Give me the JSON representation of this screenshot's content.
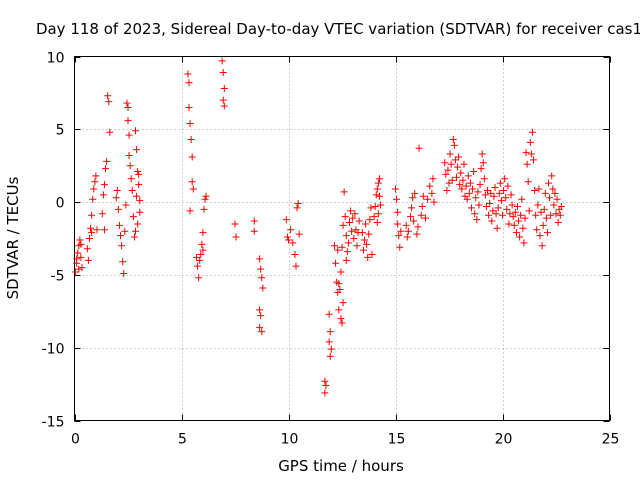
{
  "chart_data": {
    "type": "scatter",
    "title": "Day 118 of 2023, Sidereal Day-to-day VTEC variation (SDTVAR) for receiver cas1",
    "xlabel": "GPS time / hours",
    "ylabel": "SDTVAR / TECUs",
    "xlim": [
      0,
      25
    ],
    "ylim": [
      -15,
      10
    ],
    "xticks": [
      0,
      5,
      10,
      15,
      20,
      25
    ],
    "yticks": [
      -15,
      -10,
      -5,
      0,
      5,
      10
    ],
    "xtick_labels": [
      "0",
      "5",
      "10",
      "15",
      "20",
      "25"
    ],
    "ytick_labels": [
      "-15",
      "-10",
      "-5",
      "0",
      "5",
      "10"
    ],
    "grid": true,
    "marker": "+",
    "color": "#ff0000",
    "series": [
      {
        "name": "SDTVAR",
        "points": [
          [
            0.05,
            -4.8
          ],
          [
            0.1,
            -4.2
          ],
          [
            0.15,
            -3.5
          ],
          [
            0.2,
            -3.0
          ],
          [
            0.25,
            -2.6
          ],
          [
            0.3,
            -3.8
          ],
          [
            0.35,
            -4.5
          ],
          [
            0.1,
            -3.9
          ],
          [
            0.2,
            -4.6
          ],
          [
            0.3,
            -2.9
          ],
          [
            0.6,
            -3.2
          ],
          [
            0.65,
            -4.0
          ],
          [
            0.7,
            -2.5
          ],
          [
            0.75,
            -1.8
          ],
          [
            0.8,
            -0.9
          ],
          [
            0.85,
            0.2
          ],
          [
            0.9,
            0.9
          ],
          [
            0.95,
            1.4
          ],
          [
            1.0,
            1.8
          ],
          [
            1.05,
            -1.9
          ],
          [
            0.8,
            -2.1
          ],
          [
            1.35,
            0.5
          ],
          [
            1.4,
            1.2
          ],
          [
            1.45,
            2.3
          ],
          [
            1.5,
            2.8
          ],
          [
            1.55,
            7.3
          ],
          [
            1.6,
            6.9
          ],
          [
            1.65,
            4.8
          ],
          [
            1.3,
            -0.8
          ],
          [
            1.4,
            -1.9
          ],
          [
            1.95,
            0.3
          ],
          [
            2.0,
            0.8
          ],
          [
            2.05,
            -0.5
          ],
          [
            2.1,
            -1.6
          ],
          [
            2.15,
            -2.3
          ],
          [
            2.2,
            -3.0
          ],
          [
            2.25,
            -4.1
          ],
          [
            2.3,
            -4.9
          ],
          [
            2.35,
            -2.0
          ],
          [
            2.4,
            -0.2
          ],
          [
            2.45,
            6.8
          ],
          [
            2.5,
            6.5
          ],
          [
            2.5,
            5.6
          ],
          [
            2.55,
            4.6
          ],
          [
            2.55,
            3.2
          ],
          [
            2.6,
            2.5
          ],
          [
            2.65,
            1.6
          ],
          [
            2.7,
            0.8
          ],
          [
            2.75,
            -1.0
          ],
          [
            2.8,
            -2.4
          ],
          [
            2.85,
            4.9
          ],
          [
            2.9,
            3.6
          ],
          [
            2.95,
            2.1
          ],
          [
            3.0,
            1.2
          ],
          [
            3.05,
            0.1
          ],
          [
            3.05,
            -0.7
          ],
          [
            2.95,
            -1.5
          ],
          [
            2.85,
            -2.0
          ],
          [
            2.9,
            0.4
          ],
          [
            3.0,
            1.9
          ],
          [
            5.3,
            8.8
          ],
          [
            5.35,
            8.2
          ],
          [
            5.35,
            6.5
          ],
          [
            5.4,
            5.4
          ],
          [
            5.45,
            4.3
          ],
          [
            5.5,
            3.1
          ],
          [
            5.5,
            1.4
          ],
          [
            5.55,
            0.9
          ],
          [
            5.4,
            -0.6
          ],
          [
            5.7,
            -3.8
          ],
          [
            5.75,
            -4.4
          ],
          [
            5.8,
            -5.2
          ],
          [
            5.85,
            -4.0
          ],
          [
            5.9,
            -3.6
          ],
          [
            5.95,
            -2.9
          ],
          [
            6.0,
            -2.1
          ],
          [
            6.05,
            -0.5
          ],
          [
            6.1,
            0.2
          ],
          [
            6.15,
            0.4
          ],
          [
            6.0,
            -3.3
          ],
          [
            6.9,
            9.7
          ],
          [
            6.95,
            8.9
          ],
          [
            7.0,
            7.8
          ],
          [
            6.95,
            7.0
          ],
          [
            7.0,
            6.6
          ],
          [
            7.5,
            -1.5
          ],
          [
            7.55,
            -2.4
          ],
          [
            8.4,
            -1.3
          ],
          [
            8.4,
            -2.0
          ],
          [
            8.65,
            -3.9
          ],
          [
            8.7,
            -4.6
          ],
          [
            8.75,
            -5.2
          ],
          [
            8.8,
            -5.9
          ],
          [
            8.65,
            -7.4
          ],
          [
            8.7,
            -7.8
          ],
          [
            8.65,
            -8.6
          ],
          [
            8.75,
            -8.9
          ],
          [
            9.9,
            -1.2
          ],
          [
            9.95,
            -2.4
          ],
          [
            10.0,
            -2.6
          ],
          [
            10.1,
            -1.9
          ],
          [
            10.2,
            -2.8
          ],
          [
            10.3,
            -3.6
          ],
          [
            10.35,
            -4.4
          ],
          [
            10.4,
            -0.4
          ],
          [
            10.45,
            -0.1
          ],
          [
            10.5,
            -2.2
          ],
          [
            11.7,
            -12.3
          ],
          [
            11.75,
            -12.6
          ],
          [
            11.7,
            -13.1
          ],
          [
            11.9,
            -7.7
          ],
          [
            11.95,
            -8.9
          ],
          [
            11.9,
            -9.6
          ],
          [
            11.95,
            -10.6
          ],
          [
            12.0,
            -10.1
          ],
          [
            12.15,
            -3.0
          ],
          [
            12.2,
            -4.2
          ],
          [
            12.25,
            -5.5
          ],
          [
            12.3,
            -6.2
          ],
          [
            12.35,
            -7.4
          ],
          [
            12.4,
            -6.0
          ],
          [
            12.45,
            -4.8
          ],
          [
            12.5,
            -3.1
          ],
          [
            12.55,
            -1.6
          ],
          [
            12.6,
            0.7
          ],
          [
            12.65,
            -1.0
          ],
          [
            12.7,
            -2.3
          ],
          [
            12.75,
            -3.4
          ],
          [
            12.8,
            -2.8
          ],
          [
            12.85,
            -1.4
          ],
          [
            12.9,
            -0.6
          ],
          [
            12.95,
            -2.0
          ],
          [
            13.0,
            -1.1
          ],
          [
            13.05,
            -2.5
          ],
          [
            13.1,
            -0.8
          ],
          [
            13.15,
            -1.9
          ],
          [
            13.2,
            -3.0
          ],
          [
            13.25,
            -2.1
          ],
          [
            13.3,
            -1.3
          ],
          [
            12.45,
            -8.0
          ],
          [
            12.5,
            -8.3
          ],
          [
            12.35,
            -5.6
          ],
          [
            12.55,
            -6.9
          ],
          [
            12.7,
            -4.0
          ],
          [
            12.3,
            -3.3
          ],
          [
            13.45,
            -2.1
          ],
          [
            13.5,
            -3.3
          ],
          [
            13.55,
            -2.6
          ],
          [
            13.6,
            -1.5
          ],
          [
            13.65,
            -2.9
          ],
          [
            13.7,
            -3.8
          ],
          [
            13.75,
            -2.2
          ],
          [
            13.8,
            -1.2
          ],
          [
            13.85,
            -0.4
          ],
          [
            13.9,
            -3.6
          ],
          [
            14.0,
            -1.0
          ],
          [
            14.05,
            -0.3
          ],
          [
            14.1,
            0.5
          ],
          [
            14.15,
            0.9
          ],
          [
            14.2,
            1.3
          ],
          [
            14.25,
            0.4
          ],
          [
            14.3,
            -0.2
          ],
          [
            14.15,
            -1.4
          ],
          [
            14.2,
            -0.8
          ],
          [
            14.25,
            1.6
          ],
          [
            15.0,
            0.9
          ],
          [
            15.05,
            0.2
          ],
          [
            15.1,
            -1.5
          ],
          [
            15.15,
            -2.3
          ],
          [
            15.2,
            -3.1
          ],
          [
            15.25,
            -2.0
          ],
          [
            15.1,
            -0.7
          ],
          [
            15.5,
            -1.6
          ],
          [
            15.55,
            -2.4
          ],
          [
            15.6,
            -2.0
          ],
          [
            15.7,
            -1.0
          ],
          [
            15.75,
            -0.4
          ],
          [
            15.8,
            0.3
          ],
          [
            15.85,
            -1.3
          ],
          [
            15.9,
            0.6
          ],
          [
            16.0,
            -2.2
          ],
          [
            16.05,
            -1.7
          ],
          [
            16.1,
            3.7
          ],
          [
            16.2,
            -0.9
          ],
          [
            16.25,
            -0.3
          ],
          [
            16.3,
            0.4
          ],
          [
            16.4,
            -1.1
          ],
          [
            16.5,
            0.2
          ],
          [
            16.6,
            1.1
          ],
          [
            16.7,
            0.6
          ],
          [
            16.75,
            1.6
          ],
          [
            16.8,
            0.0
          ],
          [
            17.3,
            2.7
          ],
          [
            17.35,
            1.9
          ],
          [
            17.4,
            0.8
          ],
          [
            17.45,
            2.2
          ],
          [
            17.5,
            1.3
          ],
          [
            17.55,
            3.3
          ],
          [
            17.6,
            2.6
          ],
          [
            17.65,
            1.5
          ],
          [
            17.7,
            4.3
          ],
          [
            17.75,
            3.9
          ],
          [
            17.8,
            2.9
          ],
          [
            17.85,
            1.7
          ],
          [
            17.9,
            2.4
          ],
          [
            17.95,
            3.1
          ],
          [
            18.0,
            1.2
          ],
          [
            18.05,
            2.0
          ],
          [
            18.1,
            0.9
          ],
          [
            18.15,
            1.5
          ],
          [
            18.2,
            2.6
          ],
          [
            18.25,
            0.4
          ],
          [
            18.3,
            1.1
          ],
          [
            18.35,
            0.2
          ],
          [
            18.4,
            1.8
          ],
          [
            18.45,
            0.6
          ],
          [
            18.5,
            1.3
          ],
          [
            18.55,
            -0.4
          ],
          [
            18.6,
            0.9
          ],
          [
            18.65,
            2.1
          ],
          [
            18.7,
            -0.8
          ],
          [
            18.75,
            0.3
          ],
          [
            18.8,
            -1.2
          ],
          [
            18.85,
            0.7
          ],
          [
            18.9,
            -0.2
          ],
          [
            18.95,
            1.2
          ],
          [
            19.0,
            2.3
          ],
          [
            19.05,
            3.3
          ],
          [
            19.1,
            2.7
          ],
          [
            19.15,
            1.6
          ],
          [
            19.2,
            0.5
          ],
          [
            19.25,
            -0.3
          ],
          [
            19.3,
            0.8
          ],
          [
            19.35,
            -0.9
          ],
          [
            19.4,
            -0.1
          ],
          [
            19.45,
            0.6
          ],
          [
            19.5,
            -1.3
          ],
          [
            19.55,
            -0.6
          ],
          [
            19.6,
            0.4
          ],
          [
            19.65,
            1.0
          ],
          [
            19.7,
            -0.8
          ],
          [
            19.75,
            -1.8
          ],
          [
            19.8,
            -0.4
          ],
          [
            19.85,
            0.6
          ],
          [
            19.9,
            1.3
          ],
          [
            19.95,
            0.1
          ],
          [
            20.0,
            -0.9
          ],
          [
            20.05,
            0.8
          ],
          [
            20.1,
            1.6
          ],
          [
            20.15,
            0.3
          ],
          [
            20.2,
            -0.5
          ],
          [
            20.25,
            1.1
          ],
          [
            20.3,
            -1.5
          ],
          [
            20.35,
            -0.8
          ],
          [
            20.4,
            0.5
          ],
          [
            20.45,
            -0.2
          ],
          [
            20.5,
            -1.0
          ],
          [
            20.55,
            -1.6
          ],
          [
            20.6,
            -0.7
          ],
          [
            20.65,
            -2.1
          ],
          [
            20.7,
            -0.3
          ],
          [
            20.75,
            -1.3
          ],
          [
            20.8,
            -2.4
          ],
          [
            20.85,
            -0.9
          ],
          [
            20.9,
            0.2
          ],
          [
            20.95,
            -1.8
          ],
          [
            21.0,
            -2.8
          ],
          [
            21.05,
            -1.1
          ],
          [
            21.1,
            3.4
          ],
          [
            21.15,
            2.6
          ],
          [
            21.2,
            1.4
          ],
          [
            21.25,
            -0.6
          ],
          [
            21.3,
            4.1
          ],
          [
            21.35,
            3.3
          ],
          [
            21.4,
            4.8
          ],
          [
            21.45,
            2.9
          ],
          [
            21.5,
            0.8
          ],
          [
            21.55,
            -0.9
          ],
          [
            21.6,
            -1.9
          ],
          [
            21.65,
            -0.2
          ],
          [
            21.7,
            0.9
          ],
          [
            21.75,
            -2.3
          ],
          [
            21.8,
            -0.7
          ],
          [
            21.85,
            -3.0
          ],
          [
            21.9,
            -1.6
          ],
          [
            21.95,
            -0.5
          ],
          [
            22.0,
            0.6
          ],
          [
            22.05,
            -1.1
          ],
          [
            22.1,
            -2.1
          ],
          [
            22.15,
            1.3
          ],
          [
            22.2,
            0.3
          ],
          [
            22.25,
            -0.9
          ],
          [
            22.3,
            1.8
          ],
          [
            22.35,
            0.9
          ],
          [
            22.4,
            -0.2
          ],
          [
            22.45,
            0.6
          ],
          [
            22.5,
            -0.8
          ],
          [
            22.55,
            0.2
          ],
          [
            22.6,
            -1.4
          ],
          [
            22.65,
            -0.5
          ],
          [
            22.7,
            -0.9
          ],
          [
            22.75,
            -0.3
          ]
        ]
      }
    ]
  }
}
